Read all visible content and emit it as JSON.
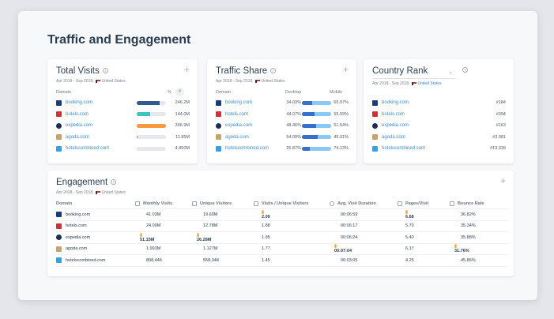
{
  "page_title": "Traffic and Engagement",
  "date_range": "Apr 2018 - Sep 2018,",
  "country": "United States",
  "domains": [
    {
      "name": "booking.com",
      "icon": "booking-logo",
      "color": "#1a3a7a"
    },
    {
      "name": "hotels.com",
      "icon": "hotels-logo",
      "color": "#d32f3a"
    },
    {
      "name": "expedia.com",
      "icon": "expedia-logo",
      "color": "#1d2f4f"
    },
    {
      "name": "agoda.com",
      "icon": "agoda-logo",
      "color": "#c9a46a"
    },
    {
      "name": "hotelscombined.com",
      "icon": "hotelscombined-logo",
      "color": "#2ea3e6"
    }
  ],
  "total_visits": {
    "title": "Total Visits",
    "col_domain": "Domain",
    "toggle_pct": "%",
    "toggle_num": "#",
    "rows": [
      {
        "value": "246.2M",
        "share": 34.5,
        "color": "#2f5b8f"
      },
      {
        "value": "144.0M",
        "share": 20.2,
        "color": "#3cc5b8"
      },
      {
        "value": "306.9M",
        "share": 43,
        "color": "#f59a3e"
      },
      {
        "value": "11.95M",
        "share": 1.7,
        "color": "#e94a5a"
      },
      {
        "value": "4.850M",
        "share": 0.7,
        "color": "#f5d98a"
      }
    ]
  },
  "traffic_share": {
    "title": "Traffic Share",
    "col_domain": "Domain",
    "col_desktop": "Desktop",
    "col_mobile": "Mobile",
    "desktop_color": "#3a6fc9",
    "mobile_color": "#8cc8f5",
    "rows": [
      {
        "desktop": "34.03%",
        "mobile": "65.97%",
        "d": 34.03
      },
      {
        "desktop": "44.07%",
        "mobile": "55.93%",
        "d": 44.07
      },
      {
        "desktop": "48.46%",
        "mobile": "51.54%",
        "d": 48.46
      },
      {
        "desktop": "54.09%",
        "mobile": "45.91%",
        "d": 54.09
      },
      {
        "desktop": "25.87%",
        "mobile": "74.13%",
        "d": 25.87
      }
    ]
  },
  "country_rank": {
    "title": "Country Rank",
    "rows": [
      "#184",
      "#394",
      "#163",
      "#3,981",
      "#13,639"
    ]
  },
  "engagement": {
    "title": "Engagement",
    "headers": [
      "Domain",
      "Monthly Visits",
      "Unique Visitors",
      "Visits / Unique Visitors",
      "Avg. Visit Duration",
      "Pages/Visit",
      "Bounce Rate"
    ],
    "rows": [
      [
        "41.03M",
        "19.60M",
        "2.09",
        "00:06:59",
        "6.68",
        "36.82%"
      ],
      [
        "24.00M",
        "12.78M",
        "1.88",
        "00:06:17",
        "5.70",
        "35.34%"
      ],
      [
        "51.15M",
        "26.28M",
        "1.95",
        "00:06:24",
        "5.40",
        "35.88%"
      ],
      [
        "1.993M",
        "1.127M",
        "1.77",
        "00:07:04",
        "6.17",
        "31.76%"
      ],
      [
        "808,446",
        "558,348",
        "1.45",
        "00:03:05",
        "4.25",
        "45.86%"
      ]
    ],
    "leaders": [
      [
        2
      ],
      [
        2
      ],
      [
        0
      ],
      [
        3
      ],
      [
        0
      ],
      [
        3
      ]
    ]
  }
}
